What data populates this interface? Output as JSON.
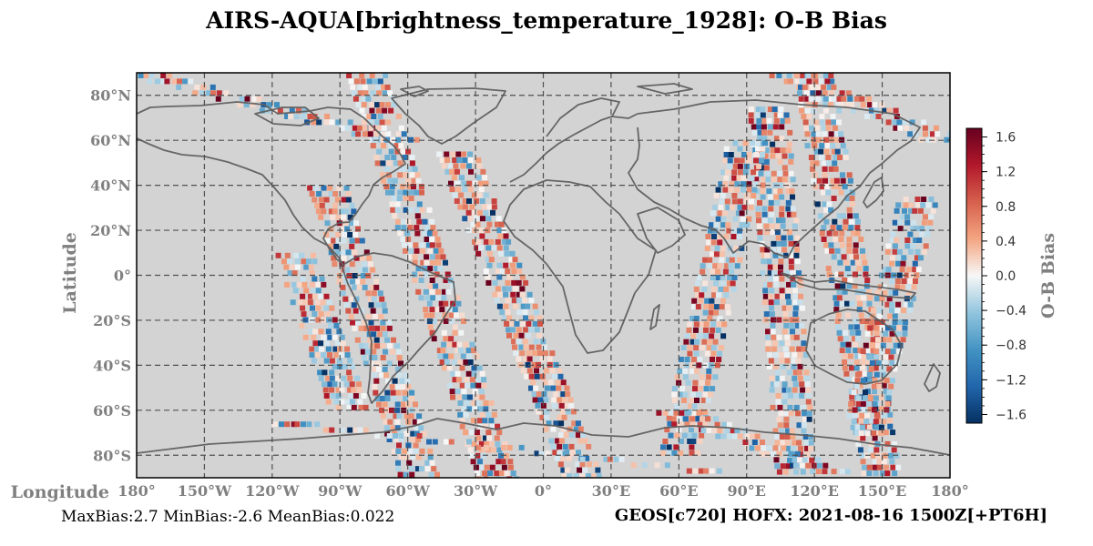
{
  "title": "AIRS-AQUA[brightness_temperature_1928]: O-B Bias",
  "colors": {
    "ocean_land": "#d3d3d3",
    "coast": "#606060",
    "grid": "#505050",
    "cmap_low": "#053061",
    "cmap_mid": "#f7f7f7",
    "cmap_high": "#67001f"
  },
  "chart_data": {
    "type": "heatmap",
    "projection": "PlateCarree",
    "xlabel": "Longitude",
    "ylabel": "Latitude",
    "xlim": [
      -180,
      180
    ],
    "ylim": [
      -90,
      90
    ],
    "grid": true,
    "x_ticks": [
      -180,
      -150,
      -120,
      -90,
      -60,
      -30,
      0,
      30,
      60,
      90,
      120,
      150,
      180
    ],
    "x_tick_labels": [
      "180°",
      "150°W",
      "120°W",
      "90°W",
      "60°W",
      "30°W",
      "0°",
      "30°E",
      "60°E",
      "90°E",
      "120°E",
      "150°E",
      "180°"
    ],
    "y_ticks": [
      80,
      60,
      40,
      20,
      0,
      -20,
      -40,
      -60,
      -80
    ],
    "y_tick_labels": [
      "80°N",
      "60°N",
      "40°N",
      "20°N",
      "0°",
      "20°S",
      "40°S",
      "60°S",
      "80°S"
    ],
    "colorbar": {
      "label": "O-B Bias",
      "range": [
        -1.7,
        1.7
      ],
      "ticks": [
        1.6,
        1.2,
        0.8,
        0.4,
        0.0,
        -0.4,
        -0.8,
        -1.2,
        -1.6
      ],
      "tick_labels": [
        "1.6",
        "1.2",
        "0.8",
        "0.4",
        "0.0",
        "−0.4",
        "−0.8",
        "−1.2",
        "−1.6"
      ],
      "cmap": "RdBu_r"
    },
    "swaths": [
      {
        "lat_top": 90,
        "lon_top": -78,
        "lat_bottom": -90,
        "lon_bottom": -20,
        "half_width": 9
      },
      {
        "lat_top": 55,
        "lon_top": -38,
        "lat_bottom": -90,
        "lon_bottom": 18,
        "half_width": 9
      },
      {
        "lat_top": 40,
        "lon_top": -95,
        "lat_bottom": -88,
        "lon_bottom": -55,
        "half_width": 9
      },
      {
        "lat_top": 10,
        "lon_top": -110,
        "lat_bottom": -60,
        "lon_bottom": -85,
        "half_width": 9
      },
      {
        "lat_top": 90,
        "lon_top": 120,
        "lat_bottom": -88,
        "lon_bottom": 150,
        "half_width": 9
      },
      {
        "lat_top": 75,
        "lon_top": 100,
        "lat_bottom": -88,
        "lon_bottom": 112,
        "half_width": 9
      },
      {
        "lat_top": 60,
        "lon_top": 90,
        "lat_bottom": -80,
        "lon_bottom": 60,
        "half_width": 9
      },
      {
        "lat_top": 35,
        "lon_top": 165,
        "lat_bottom": -70,
        "lon_bottom": 140,
        "half_width": 8
      },
      {
        "lat_top": 90,
        "lon_top": -175,
        "lat_bottom": 60,
        "lon_bottom": -60,
        "half_width": 10
      },
      {
        "lat_top": 90,
        "lon_top": 110,
        "lat_bottom": 60,
        "lon_bottom": 180,
        "half_width": 10
      },
      {
        "lat_top": -65,
        "lon_top": -110,
        "lat_bottom": -88,
        "lon_bottom": 90,
        "half_width": 10
      },
      {
        "lat_top": -60,
        "lon_top": 60,
        "lat_bottom": -88,
        "lon_bottom": 130,
        "half_width": 10
      }
    ]
  },
  "stats": {
    "text": "MaxBias:2.7 MinBias:-2.6 MeanBias:0.022",
    "max_bias": 2.7,
    "min_bias": -2.6,
    "mean_bias": 0.022
  },
  "run_info": "GEOS[c720] HOFX: 2021-08-16 1500Z[+PT6H]"
}
